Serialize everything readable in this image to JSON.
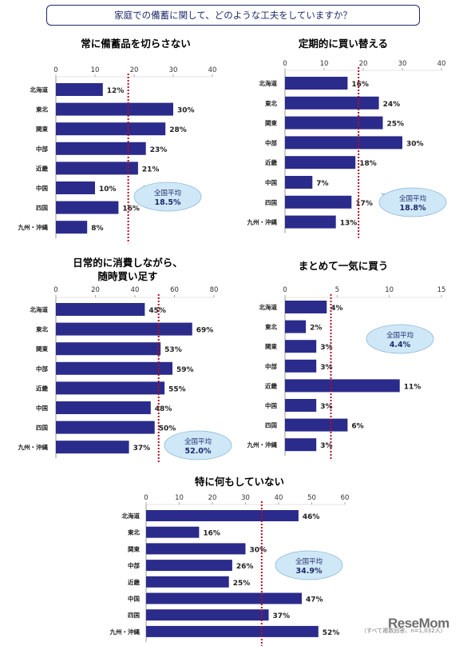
{
  "header": {
    "title": "家庭での備蓄に関して、どのような工夫をしていますか？"
  },
  "footnote": "（すべて複数回答、n=1,032人）",
  "logo_text": "ReseMom",
  "colors": {
    "bar": "#2b2b8c",
    "avg_line": "#b01020",
    "callout_fill": "#cfe8f7",
    "callout_stroke": "#8fb8d8"
  },
  "chart_data": [
    {
      "type": "bar",
      "title": "常に備蓄品を切らさない",
      "categories": [
        "北海道",
        "東北",
        "関東",
        "中部",
        "近畿",
        "中国",
        "四国",
        "九州・沖縄"
      ],
      "values": [
        12,
        30,
        28,
        23,
        21,
        10,
        16,
        8
      ],
      "value_labels": [
        "12%",
        "30%",
        "28%",
        "23%",
        "21%",
        "10%",
        "16%",
        "8%"
      ],
      "xlim": [
        0,
        40
      ],
      "xticks": [
        0,
        10,
        20,
        30,
        40
      ],
      "average": 18.5,
      "average_label": "全国平均",
      "average_value_label": "18.5%"
    },
    {
      "type": "bar",
      "title": "定期的に買い替える",
      "categories": [
        "北海道",
        "東北",
        "関東",
        "中部",
        "近畿",
        "中国",
        "四国",
        "九州・沖縄"
      ],
      "values": [
        16,
        24,
        25,
        30,
        18,
        7,
        17,
        13
      ],
      "value_labels": [
        "16%",
        "24%",
        "25%",
        "30%",
        "18%",
        "7%",
        "17%",
        "13%"
      ],
      "xlim": [
        0,
        40
      ],
      "xticks": [
        0,
        10,
        20,
        30,
        40
      ],
      "average": 18.8,
      "average_label": "全国平均",
      "average_value_label": "18.8%"
    },
    {
      "type": "bar",
      "title": "日常的に消費しながら、|随時買い足す",
      "categories": [
        "北海道",
        "東北",
        "関東",
        "中部",
        "近畿",
        "中国",
        "四国",
        "九州・沖縄"
      ],
      "values": [
        45,
        69,
        53,
        59,
        55,
        48,
        50,
        37
      ],
      "value_labels": [
        "45%",
        "69%",
        "53%",
        "59%",
        "55%",
        "48%",
        "50%",
        "37%"
      ],
      "xlim": [
        0,
        80
      ],
      "xticks": [
        0,
        20,
        40,
        60,
        80
      ],
      "average": 52.0,
      "average_label": "全国平均",
      "average_value_label": "52.0%"
    },
    {
      "type": "bar",
      "title": "まとめて一気に買う",
      "categories": [
        "北海道",
        "東北",
        "関東",
        "中部",
        "近畿",
        "中国",
        "四国",
        "九州・沖縄"
      ],
      "values": [
        4,
        2,
        3,
        3,
        11,
        3,
        6,
        3
      ],
      "value_labels": [
        "4%",
        "2%",
        "3%",
        "3%",
        "11%",
        "3%",
        "6%",
        "3%"
      ],
      "xlim": [
        0,
        15
      ],
      "xticks": [
        0,
        5,
        10,
        15
      ],
      "average": 4.4,
      "average_label": "全国平均",
      "average_value_label": "4.4%"
    },
    {
      "type": "bar",
      "title": "特に何もしていない",
      "categories": [
        "北海道",
        "東北",
        "関東",
        "中部",
        "近畿",
        "中国",
        "四国",
        "九州・沖縄"
      ],
      "values": [
        46,
        16,
        30,
        26,
        25,
        47,
        37,
        52
      ],
      "value_labels": [
        "46%",
        "16%",
        "30%",
        "26%",
        "25%",
        "47%",
        "37%",
        "52%"
      ],
      "xlim": [
        0,
        60
      ],
      "xticks": [
        0,
        10,
        20,
        30,
        40,
        50,
        60
      ],
      "average": 34.9,
      "average_label": "全国平均",
      "average_value_label": "34.9%"
    }
  ]
}
